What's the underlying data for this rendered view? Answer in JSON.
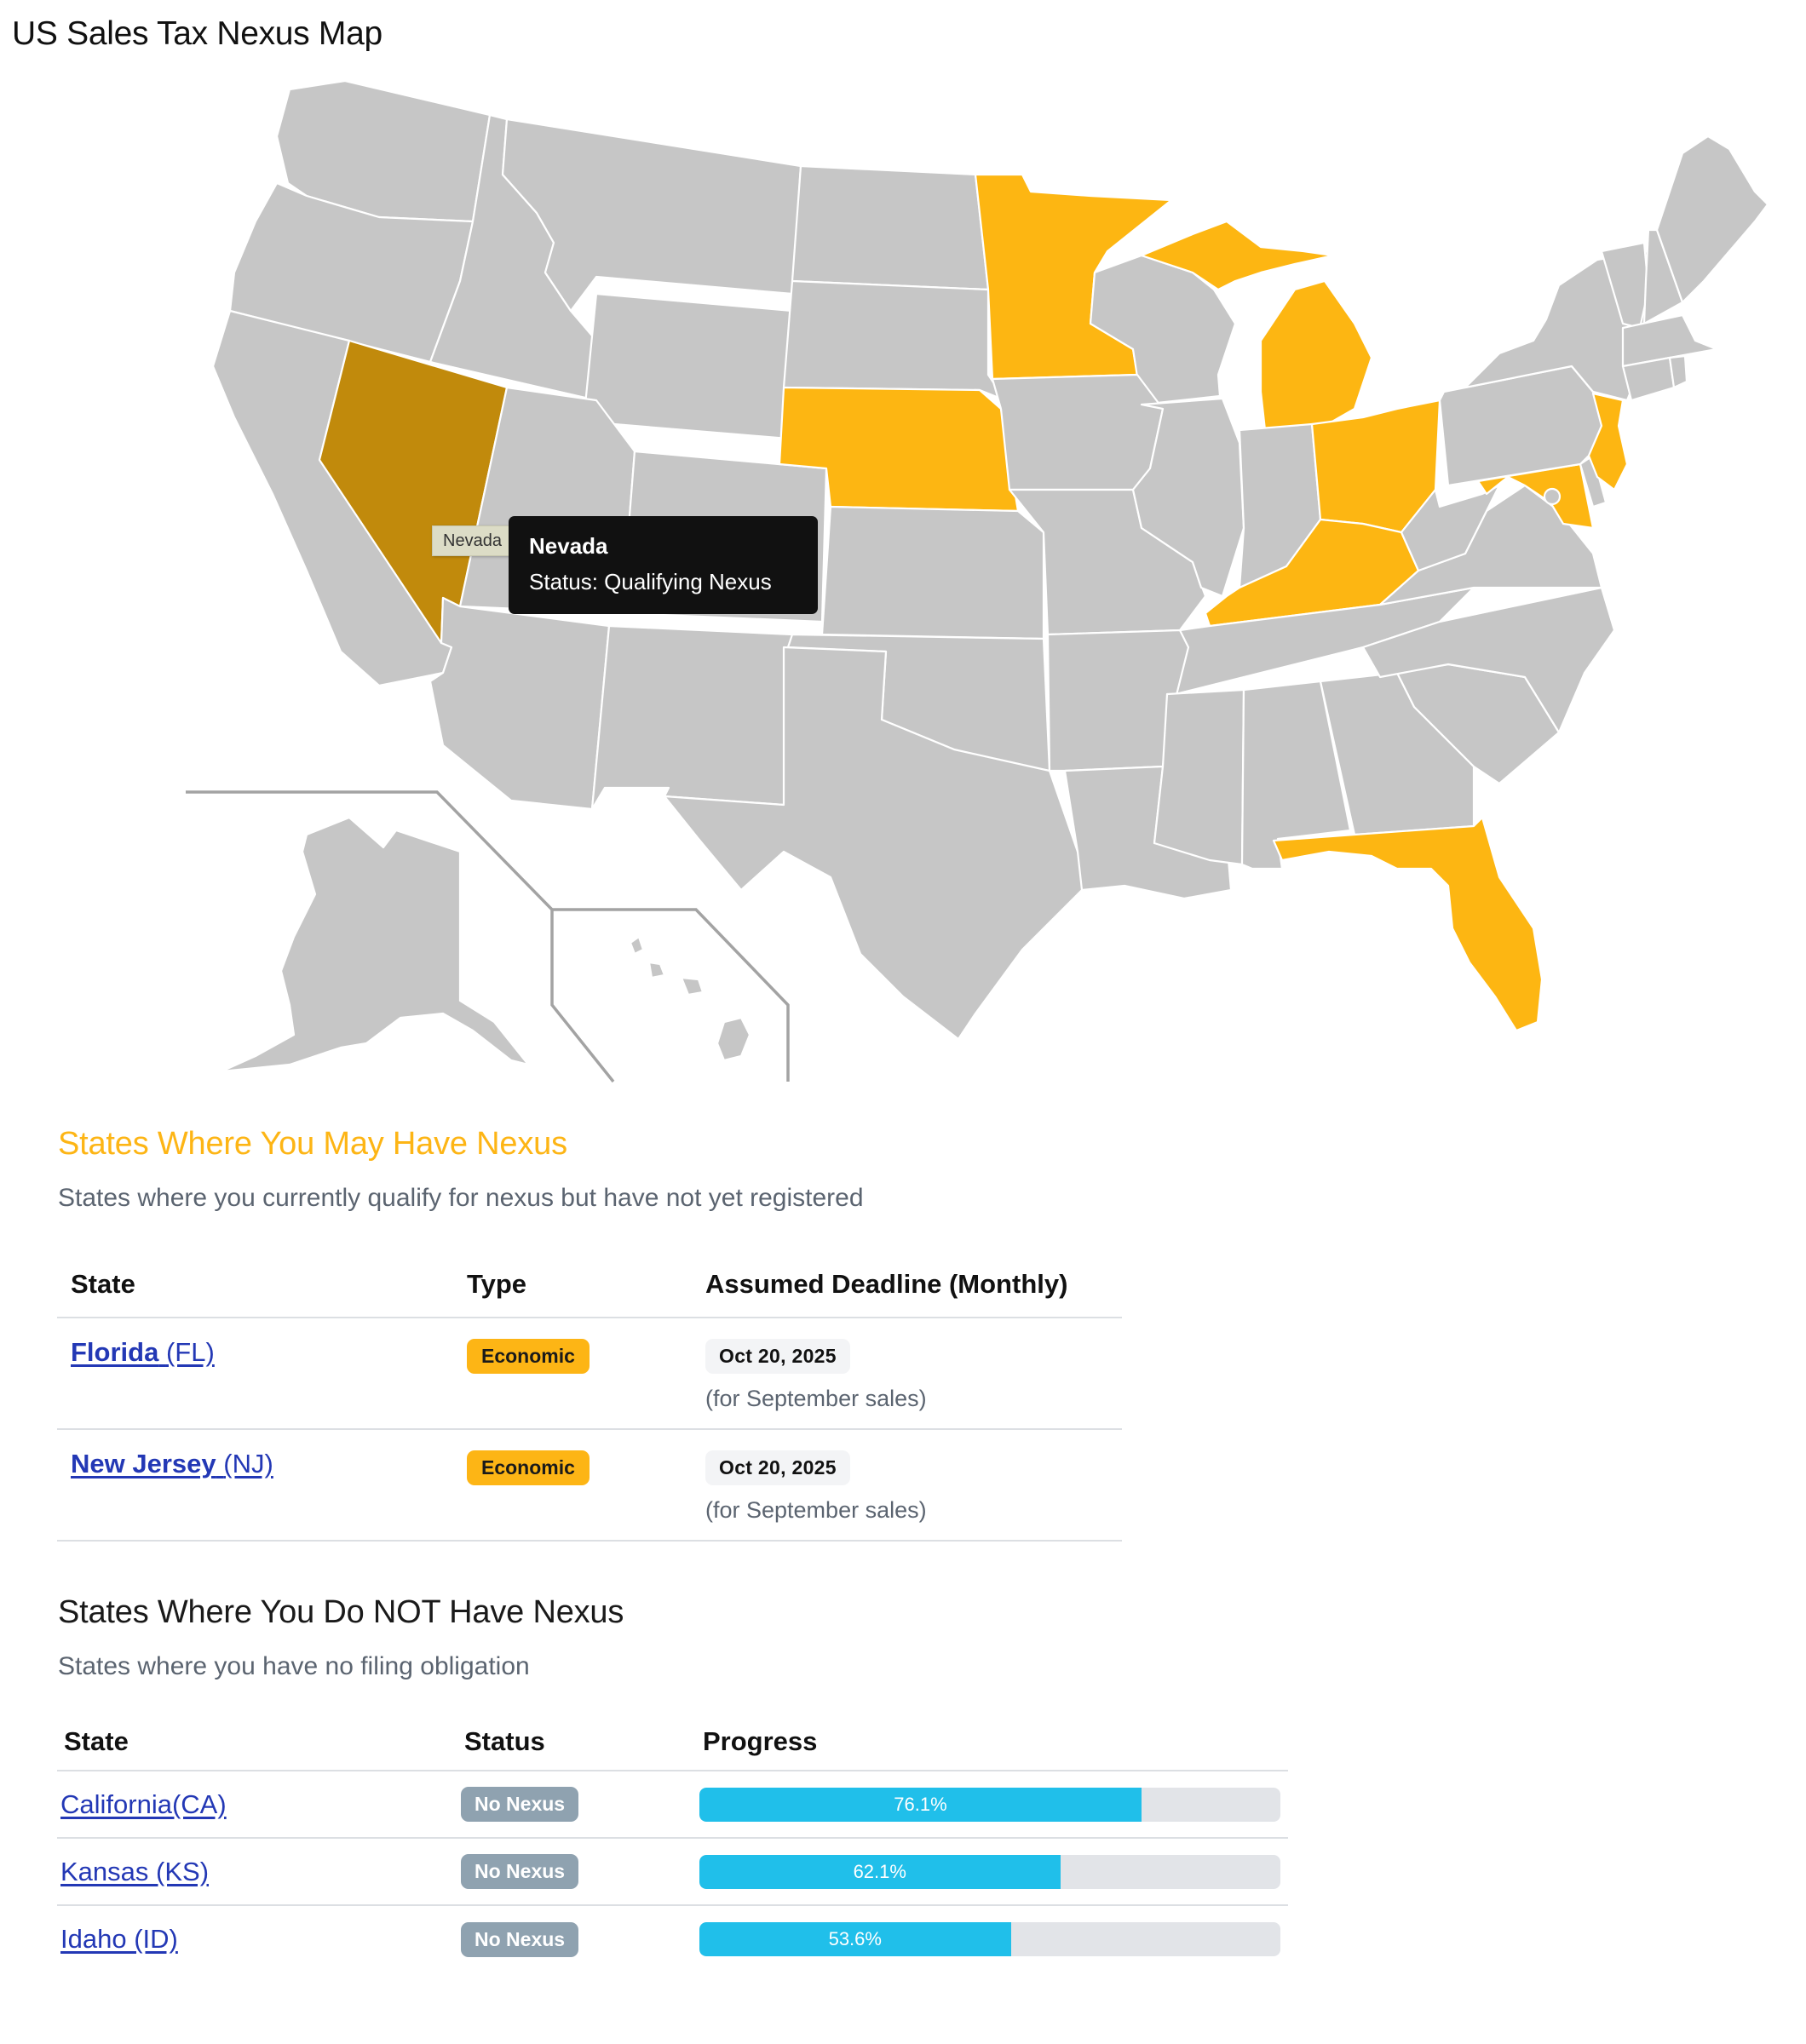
{
  "page": {
    "title": "US Sales Tax Nexus Map"
  },
  "map": {
    "colors": {
      "default": "#c6c6c6",
      "nexus": "#fdb612",
      "hover": "#c18a0c",
      "border": "#ffffff",
      "inset_line": "#a3a3a3"
    },
    "highlighted_states": [
      "Minnesota",
      "Michigan",
      "Nebraska",
      "Ohio",
      "Kentucky",
      "Maryland",
      "New Jersey",
      "Florida"
    ],
    "hovered_state": "Nevada",
    "native_tooltip": "Nevada",
    "tooltip": {
      "title": "Nevada",
      "status": "Status: Qualifying Nexus"
    }
  },
  "may_have": {
    "heading": "States Where You May Have Nexus",
    "subtitle": "States where you currently qualify for nexus but have not yet registered",
    "columns": [
      "State",
      "Type",
      "Assumed Deadline (Monthly)"
    ],
    "rows": [
      {
        "state": "Florida",
        "code": "(FL)",
        "type": "Economic",
        "deadline": "Oct 20, 2025",
        "note": "(for September sales)"
      },
      {
        "state": "New Jersey",
        "code": "(NJ)",
        "type": "Economic",
        "deadline": "Oct 20, 2025",
        "note": "(for September sales)"
      }
    ]
  },
  "no_nexus": {
    "heading": "States Where You Do NOT Have Nexus",
    "subtitle": "States where you have no filing obligation",
    "columns": [
      "State",
      "Status",
      "Progress"
    ],
    "rows": [
      {
        "label": "California(CA)",
        "status": "No Nexus",
        "progress": 76.1,
        "progress_label": "76.1%"
      },
      {
        "label": "Kansas (KS)",
        "status": "No Nexus",
        "progress": 62.1,
        "progress_label": "62.1%"
      },
      {
        "label": "Idaho (ID)",
        "status": "No Nexus",
        "progress": 53.6,
        "progress_label": "53.6%"
      }
    ]
  }
}
